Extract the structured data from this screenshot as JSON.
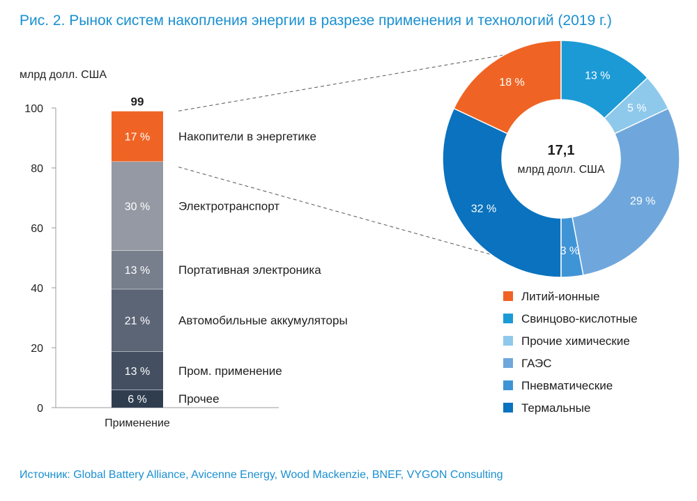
{
  "title": "Рис. 2. Рынок систем накопления энергии в разрезе применения и технологий (2019 г.)",
  "source": "Источник: Global Battery Alliance, Avicenne Energy, Wood Mackenzie, BNEF, VYGON Consulting",
  "chart_data": [
    {
      "type": "bar",
      "stacked": true,
      "ylabel": "млрд долл. США",
      "ylim": [
        0,
        100
      ],
      "yticks": [
        "0",
        "20",
        "40",
        "60",
        "80",
        "100"
      ],
      "category": "Применение",
      "total": 99,
      "total_label": "99",
      "segments": [
        {
          "name": "Прочее",
          "pct": 6,
          "label": "6 %",
          "color": "#2f3d4f"
        },
        {
          "name": "Пром. применение",
          "pct": 13,
          "label": "13 %",
          "color": "#444f61"
        },
        {
          "name": "Автомобильные аккумуляторы",
          "pct": 21,
          "label": "21 %",
          "color": "#5c6576"
        },
        {
          "name": "Портативная электроника",
          "pct": 13,
          "label": "13 %",
          "color": "#777f8d"
        },
        {
          "name": "Электротранспорт",
          "pct": 30,
          "label": "30 %",
          "color": "#9499a3"
        },
        {
          "name": "Накопители в энергетике",
          "pct": 17,
          "label": "17 %",
          "color": "#ef6424"
        }
      ]
    },
    {
      "type": "pie",
      "donut": true,
      "center_value": "17,1",
      "center_unit": "млрд долл. США",
      "slices": [
        {
          "name": "Термальные",
          "value": 32,
          "label": "32 %",
          "color": "#0a72be"
        },
        {
          "name": "Литий-ионные",
          "value": 18,
          "label": "18 %",
          "color": "#ef6424"
        },
        {
          "name": "Свинцово-кислотные",
          "value": 13,
          "label": "13 %",
          "color": "#1b9ad6"
        },
        {
          "name": "Прочие химические",
          "value": 5,
          "label": "5 %",
          "color": "#8ec9ec"
        },
        {
          "name": "ГАЭС",
          "value": 29,
          "label": "29 %",
          "color": "#6fa7dc"
        },
        {
          "name": "Пневматические",
          "value": 3,
          "label": "3 %",
          "color": "#3f94d5"
        }
      ],
      "legend": [
        {
          "label": "Литий-ионные",
          "color": "#ef6424"
        },
        {
          "label": "Свинцово-кислотные",
          "color": "#1b9ad6"
        },
        {
          "label": "Прочие химические",
          "color": "#8ec9ec"
        },
        {
          "label": "ГАЭС",
          "color": "#6fa7dc"
        },
        {
          "label": "Пневматические",
          "color": "#3f94d5"
        },
        {
          "label": "Термальные",
          "color": "#0a72be"
        }
      ]
    }
  ]
}
